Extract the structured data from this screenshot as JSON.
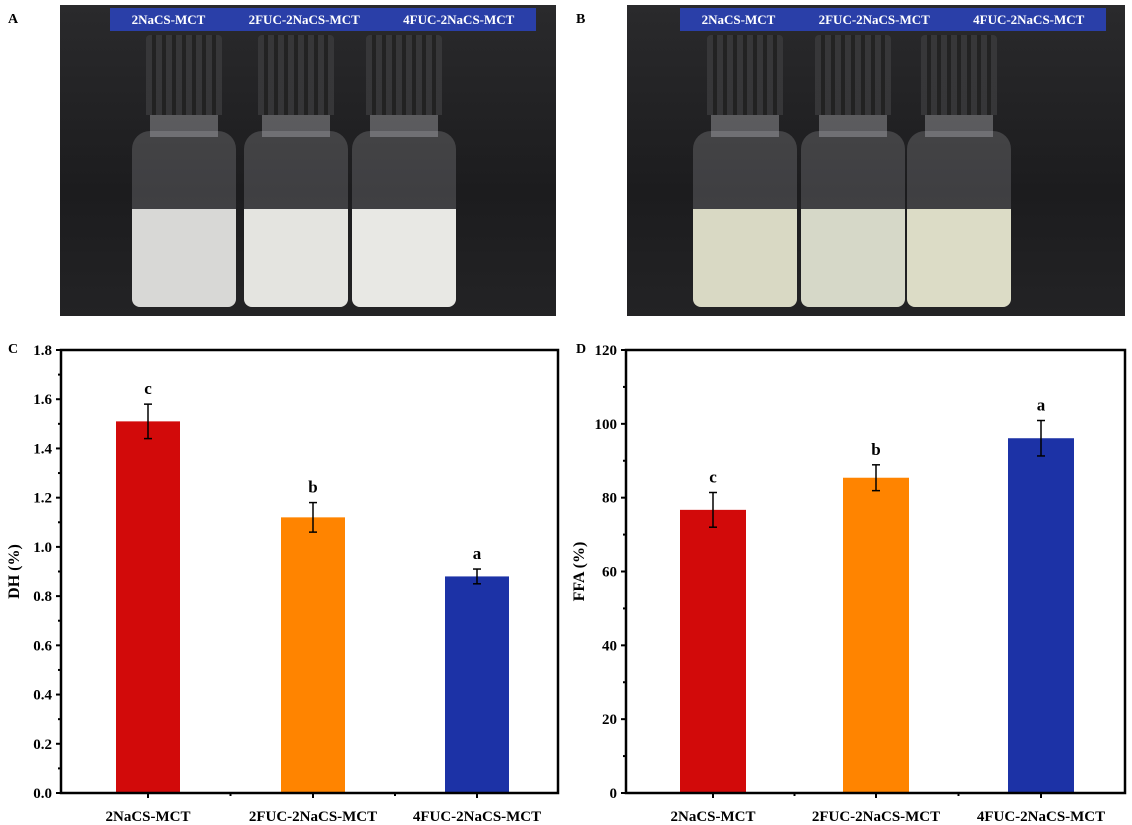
{
  "panels": {
    "A": {
      "label": "A",
      "tags": [
        "2NaCS-MCT",
        "2FUC-2NaCS-MCT",
        "4FUC-2NaCS-MCT"
      ],
      "liquid_colors": [
        "#d8d8d6",
        "#e4e4e0",
        "#e8e8e4"
      ]
    },
    "B": {
      "label": "B",
      "tags": [
        "2NaCS-MCT",
        "2FUC-2NaCS-MCT",
        "4FUC-2NaCS-MCT"
      ],
      "liquid_colors": [
        "#d9d9c4",
        "#d6d8c8",
        "#dcdcc6"
      ]
    },
    "C": {
      "label": "C"
    },
    "D": {
      "label": "D"
    }
  },
  "chart_data": [
    {
      "type": "bar",
      "panel": "C",
      "categories": [
        "2NaCS-MCT",
        "2FUC-2NaCS-MCT",
        "4FUC-2NaCS-MCT"
      ],
      "values": [
        1.51,
        1.12,
        0.88
      ],
      "errors": [
        0.07,
        0.06,
        0.03
      ],
      "significance": [
        "c",
        "b",
        "a"
      ],
      "colors": [
        "#d20a0a",
        "#ff8400",
        "#1c32a6"
      ],
      "xlabel": "",
      "ylabel": "DH (%)",
      "ylim": [
        0,
        1.8
      ],
      "yticks": [
        "0.0",
        "0.2",
        "0.4",
        "0.6",
        "0.8",
        "1.0",
        "1.2",
        "1.4",
        "1.6",
        "1.8"
      ],
      "grid": false
    },
    {
      "type": "bar",
      "panel": "D",
      "categories": [
        "2NaCS-MCT",
        "2FUC-2NaCS-MCT",
        "4FUC-2NaCS-MCT"
      ],
      "values": [
        76.7,
        85.4,
        96.1
      ],
      "errors": [
        4.7,
        3.5,
        4.8
      ],
      "significance": [
        "c",
        "b",
        "a"
      ],
      "colors": [
        "#d20a0a",
        "#ff8400",
        "#1c32a6"
      ],
      "xlabel": "",
      "ylabel": "FFA (%)",
      "ylim": [
        0,
        120
      ],
      "yticks": [
        "0",
        "20",
        "40",
        "60",
        "80",
        "100",
        "120"
      ],
      "grid": false
    }
  ]
}
